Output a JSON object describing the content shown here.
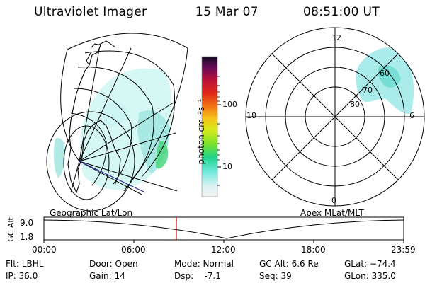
{
  "header": {
    "instrument": "Ultraviolet Imager",
    "date": "15 Mar 07",
    "time": "08:51:00 UT"
  },
  "colorbar": {
    "unit_label": "photon cm⁻²s⁻¹",
    "ticks": [
      "100",
      "10"
    ]
  },
  "polar_plot": {
    "mlt_labels": [
      "12",
      "18",
      "6",
      "0"
    ],
    "lat_labels": [
      "60",
      "70",
      "80"
    ]
  },
  "map_label": "Geographic Lat/Lon",
  "polar_label": "Apex MLat/MLT",
  "altitude_strip": {
    "axis_label": "GC Alt",
    "ticks": [
      "9.0",
      "1.8"
    ],
    "time_ticks": [
      "00:00",
      "06:00",
      "12:00",
      "18:00",
      "23:59"
    ],
    "current_time_marker": "08:51"
  },
  "status": {
    "filter": "Flt: LBHL",
    "ip": "IP: 36.0",
    "door": "Door: Open",
    "gain": "Gain: 14",
    "mode": "Mode: Normal",
    "dsp": "Dsp:    -7.1",
    "gc_alt": "GC Alt: 6.6 Re",
    "seq": "Seq: 39",
    "glat": "GLat: −74.4",
    "glon": "GLon: 335.0"
  },
  "colors": {
    "aurora": "#7fe8e0",
    "aurora_strong": "#3ccf6a",
    "marker": "#e00000",
    "coast": "#1a1a6a"
  }
}
